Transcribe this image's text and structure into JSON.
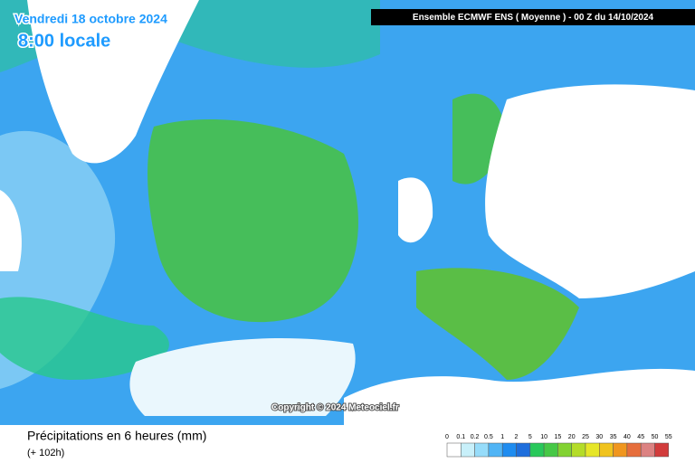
{
  "header": {
    "date": "Vendredi 18 octobre 2024",
    "time": "8:00 locale",
    "model": "Ensemble ECMWF ENS  ( Moyenne )  -  00 Z du 14/10/2024"
  },
  "map": {
    "copyright": "Copyright © 2024 Meteociel.fr"
  },
  "footer": {
    "title": "Précipitations en 6 heures (mm)",
    "lead": "(+ 102h)"
  },
  "legend": {
    "thresholds": [
      0,
      0.1,
      0.2,
      0.5,
      1,
      2,
      5,
      10,
      15,
      20,
      25,
      30,
      35,
      40,
      45,
      50,
      55
    ],
    "colors": [
      "#ffffff",
      "#c8f0fa",
      "#96dcfa",
      "#50b4f5",
      "#1e8cf0",
      "#1e6edc",
      "#28c85a",
      "#46c846",
      "#82d232",
      "#b4dc28",
      "#e6e628",
      "#f0c31e",
      "#f0961e",
      "#e66e3c",
      "#dc8282",
      "#d23c3c"
    ]
  }
}
